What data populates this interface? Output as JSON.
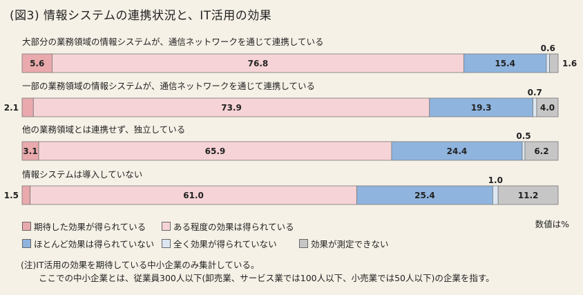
{
  "title": "(図3) 情報システムの連携状況と、IT活用の効果",
  "unit_note": "数値は%",
  "colors": {
    "expected": "#e9a9ad",
    "some": "#f6d3d6",
    "mostly_none": "#8fb4de",
    "none": "#dce7f3",
    "unmeasured": "#c6c6c6"
  },
  "legend": [
    {
      "label": "期待した効果が得られている",
      "key": "expected"
    },
    {
      "label": "ある程度の効果は得られている",
      "key": "some"
    },
    {
      "label": "ほとんど効果は得られていない",
      "key": "mostly_none"
    },
    {
      "label": "全く効果が得られていない",
      "key": "none"
    },
    {
      "label": "効果が測定できない",
      "key": "unmeasured"
    }
  ],
  "chart_data": {
    "type": "bar",
    "orientation": "horizontal",
    "stacked": true,
    "categories": [
      "大部分の業務領域の情報システムが、通信ネットワークを通じて連携している",
      "一部の業務領域の情報システムが、通信ネットワークを通じて連携している",
      "他の業務領域とは連携せず、独立している",
      "情報システムは導入していない"
    ],
    "series": [
      {
        "name": "期待した効果が得られている",
        "key": "expected",
        "values": [
          5.6,
          2.1,
          3.1,
          1.5
        ]
      },
      {
        "name": "ある程度の効果は得られている",
        "key": "some",
        "values": [
          76.8,
          73.9,
          65.9,
          61.0
        ]
      },
      {
        "name": "ほとんど効果は得られていない",
        "key": "mostly_none",
        "values": [
          15.4,
          19.3,
          24.4,
          25.4
        ]
      },
      {
        "name": "全く効果が得られていない",
        "key": "none",
        "values": [
          0.6,
          0.7,
          0.5,
          1.0
        ]
      },
      {
        "name": "効果が測定できない",
        "key": "unmeasured",
        "values": [
          1.6,
          4.0,
          6.2,
          11.2
        ]
      }
    ],
    "value_labels": [
      [
        "5.6",
        "76.8",
        "15.4",
        "0.6",
        "1.6"
      ],
      [
        "2.1",
        "73.9",
        "19.3",
        "0.7",
        "4.0"
      ],
      [
        "3.1",
        "65.9",
        "24.4",
        "0.5",
        "6.2"
      ],
      [
        "1.5",
        "61.0",
        "25.4",
        "1.0",
        "11.2"
      ]
    ],
    "xlim": [
      0,
      100
    ]
  },
  "notes": [
    "(注)IT活用の効果を期待している中小企業のみ集計している。",
    "ここでの中小企業とは、従業員300人以下(卸売業、サービス業では100人以下、小売業では50人以下)の企業を指す。"
  ]
}
